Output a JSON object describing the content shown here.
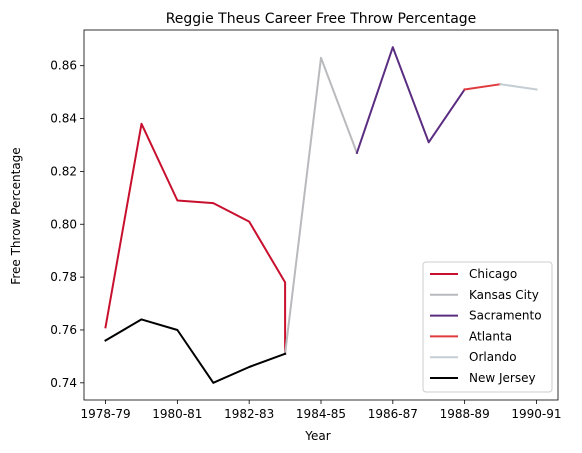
{
  "chart_data": {
    "type": "line",
    "title": "Reggie Theus Career Free Throw Percentage",
    "xlabel": "Year",
    "ylabel": "Free Throw Percentage",
    "x_tick_labels": [
      "1978-79",
      "1980-81",
      "1982-83",
      "1984-85",
      "1986-87",
      "1988-89",
      "1990-91"
    ],
    "x_tick_positions": [
      0,
      2,
      4,
      6,
      8,
      10,
      12
    ],
    "xlim": [
      -0.6,
      12.6
    ],
    "ylim": [
      0.7335,
      0.8735
    ],
    "y_ticks": [
      0.74,
      0.76,
      0.78,
      0.8,
      0.82,
      0.84,
      0.86
    ],
    "grid": false,
    "legend_position": "lower right",
    "series": [
      {
        "name": "Chicago",
        "color": "#c8102e",
        "x": [
          0,
          1,
          2,
          3,
          4,
          5,
          5
        ],
        "y": [
          0.761,
          0.838,
          0.809,
          0.808,
          0.801,
          0.778,
          0.751
        ]
      },
      {
        "name": "Kansas City",
        "color": "#b9babd",
        "x": [
          5,
          6,
          7
        ],
        "y": [
          0.751,
          0.863,
          0.827
        ]
      },
      {
        "name": "Sacramento",
        "color": "#5a2d81",
        "x": [
          7,
          8,
          9,
          10
        ],
        "y": [
          0.827,
          0.867,
          0.831,
          0.851
        ]
      },
      {
        "name": "Atlanta",
        "color": "#e03a3e",
        "x": [
          10,
          11
        ],
        "y": [
          0.851,
          0.853
        ]
      },
      {
        "name": "Orlando",
        "color": "#c4ced4",
        "x": [
          11,
          12
        ],
        "y": [
          0.853,
          0.851
        ]
      },
      {
        "name": "New Jersey",
        "color": "#000000",
        "x": [
          0,
          1,
          2,
          3,
          4,
          5
        ],
        "y": [
          0.756,
          0.764,
          0.76,
          0.74,
          0.746,
          0.751
        ]
      }
    ]
  }
}
